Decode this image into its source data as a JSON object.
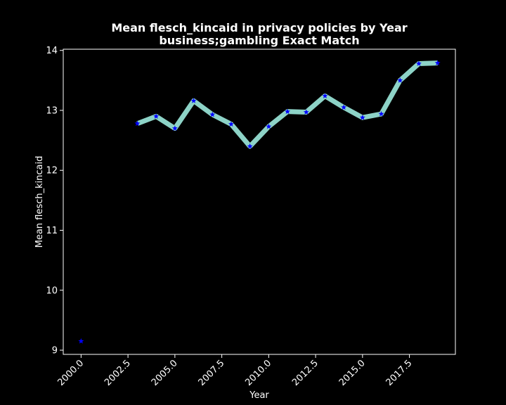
{
  "chart_data": {
    "type": "line",
    "title_line1": "Mean flesch_kincaid in privacy policies by Year",
    "title_line2": "business;gambling Exact Match",
    "xlabel": "Year",
    "ylabel": "Mean flesch_kincaid",
    "xlim": [
      1999.05,
      2019.95
    ],
    "ylim": [
      8.93,
      14.02
    ],
    "xticks": [
      2000.0,
      2002.5,
      2005.0,
      2007.5,
      2010.0,
      2012.5,
      2015.0,
      2017.5
    ],
    "xtick_labels": [
      "2000.0",
      "2002.5",
      "2005.0",
      "2007.5",
      "2010.0",
      "2012.5",
      "2015.0",
      "2017.5"
    ],
    "yticks": [
      9,
      10,
      11,
      12,
      13,
      14
    ],
    "ytick_labels": [
      "9",
      "10",
      "11",
      "12",
      "13",
      "14"
    ],
    "grid": false,
    "colors": {
      "background": "#000000",
      "line": "#8dd3c7",
      "marker": "#0000ff",
      "axes": "#ffffff",
      "text": "#ffffff"
    },
    "series": [
      {
        "x": [
          2000,
          2002,
          2003,
          2004,
          2005,
          2006,
          2007,
          2008,
          2009,
          2010,
          2011,
          2012,
          2013,
          2014,
          2015,
          2016,
          2017,
          2018,
          2019
        ],
        "y": [
          9.15,
          null,
          12.78,
          12.9,
          12.7,
          13.16,
          12.93,
          12.77,
          12.4,
          12.73,
          12.98,
          12.97,
          13.24,
          13.05,
          12.88,
          12.94,
          13.5,
          13.78,
          13.79
        ]
      }
    ]
  }
}
